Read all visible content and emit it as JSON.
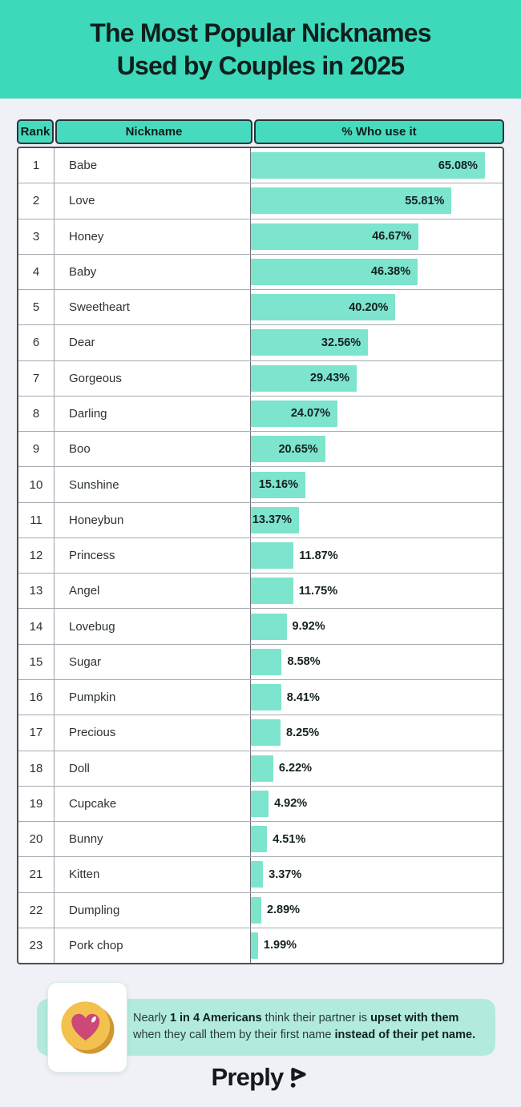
{
  "title": {
    "line1": "The Most Popular Nicknames",
    "line2": "Used by Couples in 2025"
  },
  "table": {
    "headers": [
      "Rank",
      "Nickname",
      "% Who use it"
    ],
    "rows": [
      {
        "rank": "1",
        "name": "Babe",
        "value": 65.08,
        "label": "65.08%"
      },
      {
        "rank": "2",
        "name": "Love",
        "value": 55.81,
        "label": "55.81%"
      },
      {
        "rank": "3",
        "name": "Honey",
        "value": 46.67,
        "label": "46.67%"
      },
      {
        "rank": "4",
        "name": "Baby",
        "value": 46.38,
        "label": "46.38%"
      },
      {
        "rank": "5",
        "name": "Sweetheart",
        "value": 40.2,
        "label": "40.20%"
      },
      {
        "rank": "6",
        "name": "Dear",
        "value": 32.56,
        "label": "32.56%"
      },
      {
        "rank": "7",
        "name": "Gorgeous",
        "value": 29.43,
        "label": "29.43%"
      },
      {
        "rank": "8",
        "name": "Darling",
        "value": 24.07,
        "label": "24.07%"
      },
      {
        "rank": "9",
        "name": "Boo",
        "value": 20.65,
        "label": "20.65%"
      },
      {
        "rank": "10",
        "name": "Sunshine",
        "value": 15.16,
        "label": "15.16%"
      },
      {
        "rank": "11",
        "name": "Honeybun",
        "value": 13.37,
        "label": "13.37%"
      },
      {
        "rank": "12",
        "name": "Princess",
        "value": 11.87,
        "label": "11.87%"
      },
      {
        "rank": "13",
        "name": "Angel",
        "value": 11.75,
        "label": "11.75%"
      },
      {
        "rank": "14",
        "name": "Lovebug",
        "value": 9.92,
        "label": "9.92%"
      },
      {
        "rank": "15",
        "name": "Sugar",
        "value": 8.58,
        "label": "8.58%"
      },
      {
        "rank": "16",
        "name": "Pumpkin",
        "value": 8.41,
        "label": "8.41%"
      },
      {
        "rank": "17",
        "name": "Precious",
        "value": 8.25,
        "label": "8.25%"
      },
      {
        "rank": "18",
        "name": "Doll",
        "value": 6.22,
        "label": "6.22%"
      },
      {
        "rank": "19",
        "name": "Cupcake",
        "value": 4.92,
        "label": "4.92%"
      },
      {
        "rank": "20",
        "name": "Bunny",
        "value": 4.51,
        "label": "4.51%"
      },
      {
        "rank": "21",
        "name": "Kitten",
        "value": 3.37,
        "label": "3.37%"
      },
      {
        "rank": "22",
        "name": "Dumpling",
        "value": 2.89,
        "label": "2.89%"
      },
      {
        "rank": "23",
        "name": "Pork chop",
        "value": 1.99,
        "label": "1.99%"
      }
    ]
  },
  "callout": {
    "segments": [
      {
        "text": "Nearly ",
        "bold": false
      },
      {
        "text": "1 in 4 Americans",
        "bold": true
      },
      {
        "text": " think their partner is ",
        "bold": false
      },
      {
        "text": "upset with them",
        "bold": true
      },
      {
        "text": " when they call them by their first name ",
        "bold": false
      },
      {
        "text": "instead of their pet name.",
        "bold": true
      }
    ]
  },
  "footer": {
    "brand": "Preply"
  },
  "colors": {
    "hero_teal": "#3ed9ba",
    "header_chip_teal": "#46dbbe",
    "bar_teal": "#7de4cd",
    "callout_teal": "#b2ebde",
    "page_background": "#f0f1f6",
    "text_dark": "#0d1f1c",
    "coin_gold": "#f2c14e",
    "coin_edge": "#ce9733",
    "heart_pink": "#cb4878"
  },
  "chart_data": {
    "type": "bar",
    "orientation": "horizontal",
    "title": "The Most Popular Nicknames Used by Couples in 2025",
    "categories": [
      "Babe",
      "Love",
      "Honey",
      "Baby",
      "Sweetheart",
      "Dear",
      "Gorgeous",
      "Darling",
      "Boo",
      "Sunshine",
      "Honeybun",
      "Princess",
      "Angel",
      "Lovebug",
      "Sugar",
      "Pumpkin",
      "Precious",
      "Doll",
      "Cupcake",
      "Bunny",
      "Kitten",
      "Dumpling",
      "Pork chop"
    ],
    "values": [
      65.08,
      55.81,
      46.67,
      46.38,
      40.2,
      32.56,
      29.43,
      24.07,
      20.65,
      15.16,
      13.37,
      11.87,
      11.75,
      9.92,
      8.58,
      8.41,
      8.25,
      6.22,
      4.92,
      4.51,
      3.37,
      2.89,
      1.99
    ],
    "value_unit": "%",
    "xlabel": "% Who use it",
    "ylabel": "Nickname",
    "xlim": [
      0,
      70
    ],
    "grid": false,
    "legend": false,
    "annotation": "Nearly 1 in 4 Americans think their partner is upset with them when they call them by their first name instead of their pet name."
  }
}
